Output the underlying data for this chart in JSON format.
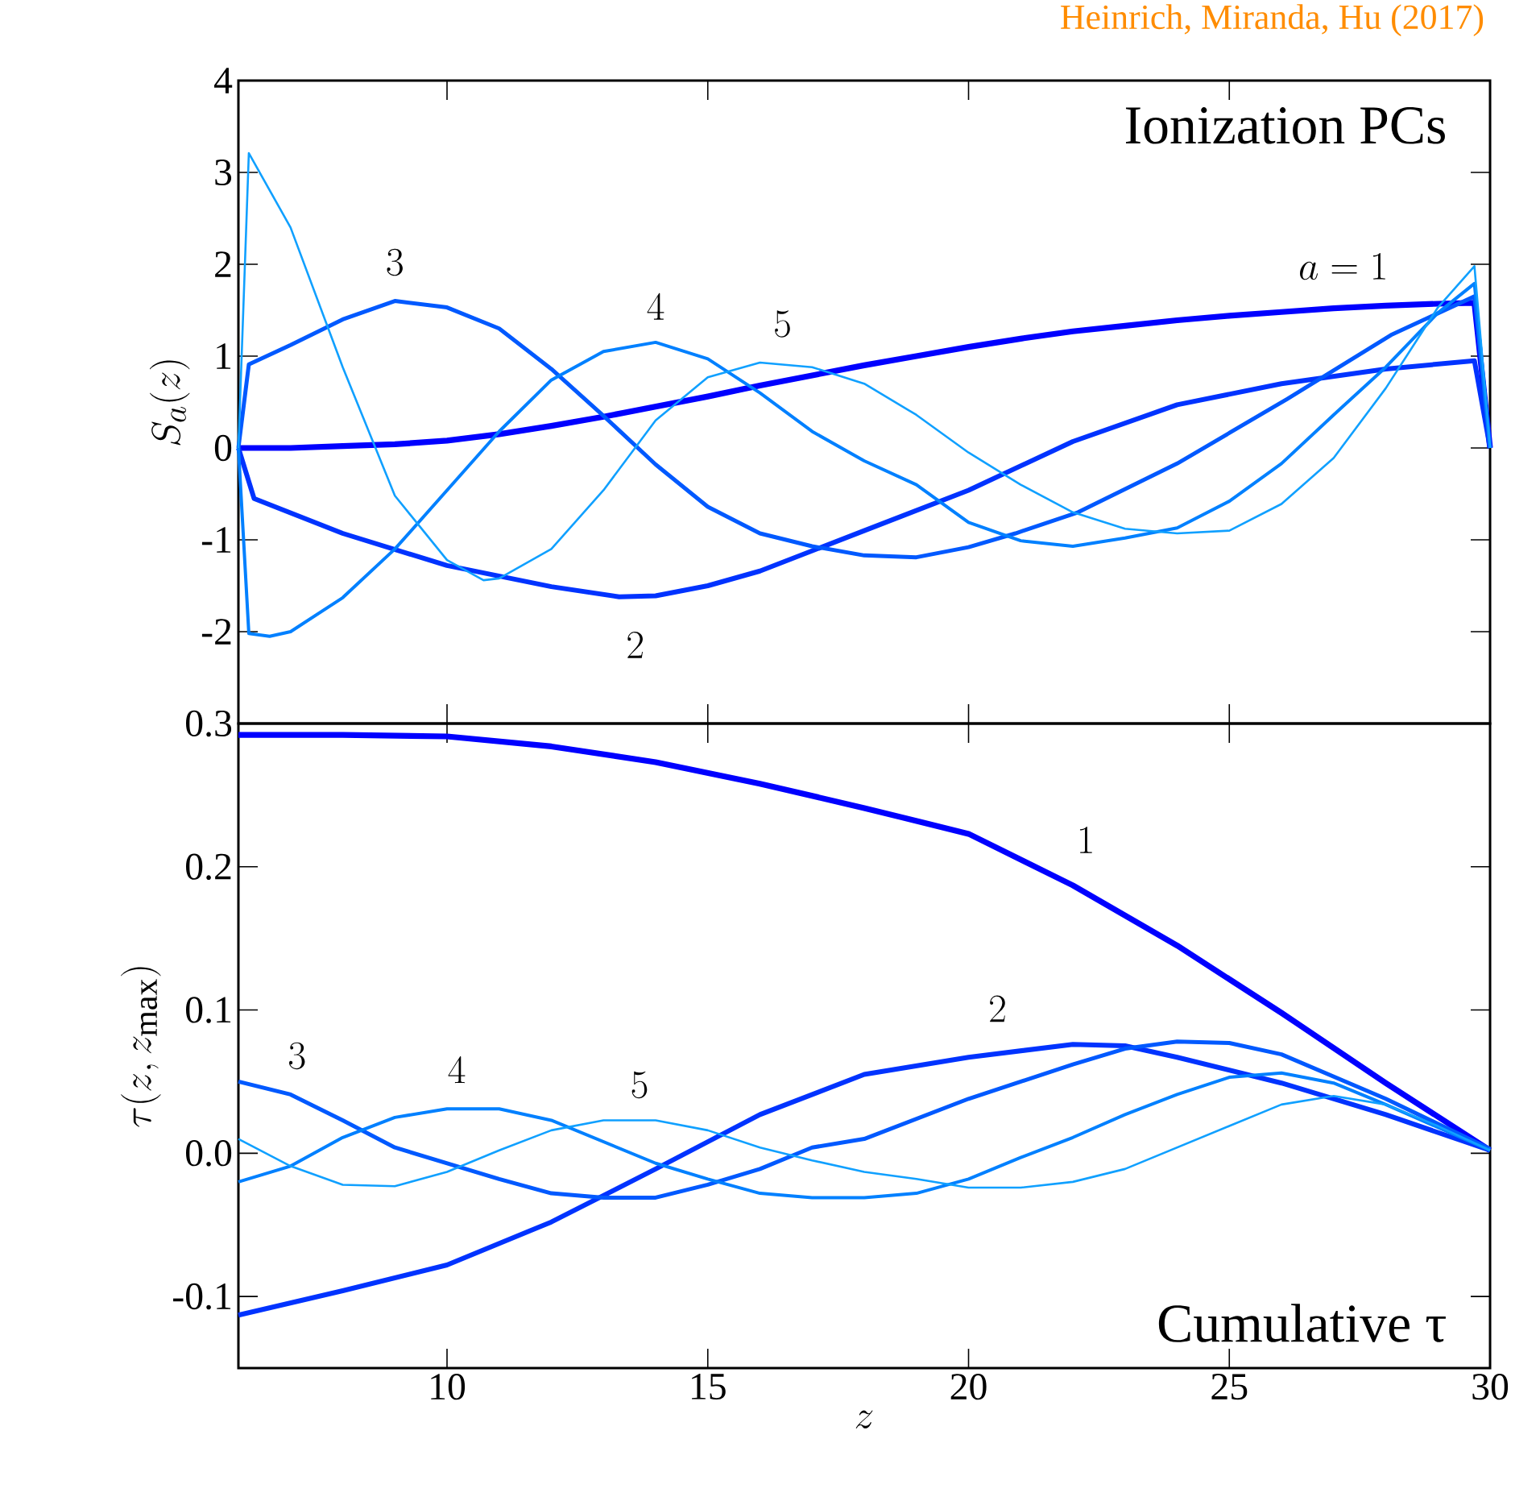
{
  "chart_data": [
    {
      "type": "line",
      "title": "Ionization PCs",
      "ylabel": "S_a(z)",
      "xlim": [
        6,
        30
      ],
      "xticks": [
        10,
        15,
        20,
        25,
        30
      ],
      "ylim": [
        -3,
        4
      ],
      "yticks": [
        -2,
        -1,
        0,
        1,
        2,
        3,
        4
      ],
      "tick_labels": "y",
      "annotations": [
        "Heinrich, Miranda, Hu (2017)"
      ],
      "series": [
        {
          "name": "a = 1",
          "color": "#0000ff",
          "x": [
            6,
            7,
            8,
            9,
            10,
            11,
            12,
            13,
            14,
            15,
            16,
            17,
            18,
            19,
            20,
            21,
            22,
            23,
            24,
            25,
            26,
            27,
            28,
            29,
            29.7,
            30
          ],
          "values": [
            0,
            0,
            0.02,
            0.04,
            0.08,
            0.15,
            0.24,
            0.34,
            0.45,
            0.56,
            0.68,
            0.79,
            0.9,
            1.0,
            1.1,
            1.19,
            1.27,
            1.33,
            1.39,
            1.44,
            1.48,
            1.52,
            1.55,
            1.57,
            1.58,
            0
          ]
        },
        {
          "name": "2",
          "color": "#0033ff",
          "x": [
            6,
            6.3,
            8,
            10,
            12,
            13.3,
            14,
            15,
            16,
            18,
            20,
            22,
            24,
            26,
            28,
            29.7,
            30
          ],
          "values": [
            0,
            -0.55,
            -0.93,
            -1.28,
            -1.51,
            -1.62,
            -1.61,
            -1.5,
            -1.34,
            -0.9,
            -0.46,
            0.07,
            0.47,
            0.7,
            0.86,
            0.95,
            0
          ]
        },
        {
          "name": "3",
          "color": "#0059ff",
          "x": [
            6,
            6.2,
            7,
            8,
            9,
            10,
            11,
            12,
            13,
            14,
            15,
            16,
            17,
            18,
            19,
            20,
            20.9,
            22.1,
            24,
            26.1,
            28.1,
            29.7,
            30
          ],
          "values": [
            0,
            0.91,
            1.12,
            1.4,
            1.6,
            1.53,
            1.3,
            0.86,
            0.35,
            -0.18,
            -0.64,
            -0.93,
            -1.07,
            -1.17,
            -1.19,
            -1.08,
            -0.93,
            -0.7,
            -0.17,
            0.53,
            1.23,
            1.65,
            0
          ]
        },
        {
          "name": "4",
          "color": "#0080ff",
          "x": [
            6,
            6.2,
            6.6,
            7,
            8,
            9,
            10,
            11,
            12,
            13,
            14,
            15,
            16,
            17,
            18,
            19,
            20,
            21,
            22,
            23,
            24,
            25,
            26,
            27,
            28,
            29,
            29.7,
            30
          ],
          "values": [
            0,
            -2.02,
            -2.05,
            -2.0,
            -1.63,
            -1.1,
            -0.46,
            0.18,
            0.74,
            1.05,
            1.15,
            0.97,
            0.6,
            0.18,
            -0.14,
            -0.4,
            -0.81,
            -1.01,
            -1.07,
            -0.98,
            -0.87,
            -0.58,
            -0.17,
            0.36,
            0.88,
            1.47,
            1.79,
            0
          ]
        },
        {
          "name": "5",
          "color": "#10a0ff",
          "x": [
            6,
            6.2,
            7,
            8,
            9,
            10,
            10.7,
            11,
            12,
            13,
            14,
            15,
            16,
            17,
            18,
            19,
            20,
            21,
            22,
            23,
            24,
            25,
            26,
            27,
            28,
            29,
            29.7,
            30
          ],
          "values": [
            0,
            3.21,
            2.4,
            0.88,
            -0.52,
            -1.22,
            -1.44,
            -1.42,
            -1.1,
            -0.46,
            0.3,
            0.77,
            0.93,
            0.88,
            0.7,
            0.36,
            -0.05,
            -0.4,
            -0.7,
            -0.88,
            -0.93,
            -0.9,
            -0.61,
            -0.11,
            0.65,
            1.53,
            1.98,
            0
          ]
        }
      ]
    },
    {
      "type": "line",
      "title": "Cumulative τ",
      "xlabel": "z",
      "ylabel": "\\tau(z,z_{\\mathrm{max}})",
      "xlim": [
        6,
        30
      ],
      "xticks": [
        10,
        15,
        20,
        25,
        30
      ],
      "ylim": [
        -0.15,
        0.3
      ],
      "yticks": [
        -0.1,
        {
          "value": 0,
          "label": "0.0"
        },
        0.1,
        0.2,
        0.3
      ],
      "series": [
        {
          "name": "1",
          "color": "#0000ff",
          "x": [
            6,
            8,
            10,
            12,
            14,
            16,
            18,
            20,
            22,
            24,
            26,
            28,
            30
          ],
          "values": [
            0.292,
            0.292,
            0.291,
            0.284,
            0.273,
            0.258,
            0.241,
            0.223,
            0.187,
            0.145,
            0.098,
            0.049,
            0.002
          ]
        },
        {
          "name": "2",
          "color": "#0033ff",
          "x": [
            6,
            8,
            10,
            12,
            14,
            16,
            18,
            20,
            22,
            23,
            24,
            26,
            28,
            30
          ],
          "values": [
            -0.113,
            -0.096,
            -0.078,
            -0.048,
            -0.011,
            0.027,
            0.055,
            0.067,
            0.076,
            0.075,
            0.067,
            0.049,
            0.027,
            0.002
          ]
        },
        {
          "name": "3",
          "color": "#0059ff",
          "x": [
            6,
            7,
            8,
            9,
            10,
            11,
            12,
            13,
            14,
            15,
            16,
            17,
            18,
            20,
            22,
            23,
            24,
            25,
            26,
            28,
            30
          ],
          "values": [
            0.05,
            0.041,
            0.023,
            0.004,
            -0.007,
            -0.018,
            -0.028,
            -0.031,
            -0.031,
            -0.022,
            -0.011,
            0.004,
            0.01,
            0.038,
            0.062,
            0.073,
            0.078,
            0.077,
            0.069,
            0.038,
            0.003
          ]
        },
        {
          "name": "4",
          "color": "#0080ff",
          "x": [
            6,
            7,
            8,
            9,
            10,
            11,
            12,
            13,
            14,
            15,
            16,
            17,
            18,
            19,
            20,
            21,
            22,
            23,
            24,
            25,
            26,
            27,
            28,
            30
          ],
          "values": [
            -0.02,
            -0.009,
            0.011,
            0.025,
            0.031,
            0.031,
            0.023,
            0.008,
            -0.007,
            -0.018,
            -0.028,
            -0.031,
            -0.031,
            -0.028,
            -0.018,
            -0.003,
            0.011,
            0.027,
            0.041,
            0.053,
            0.056,
            0.049,
            0.034,
            0.002
          ]
        },
        {
          "name": "5",
          "color": "#10a0ff",
          "x": [
            6,
            7,
            8,
            9,
            10,
            11,
            12,
            13,
            14,
            15,
            16,
            17,
            18,
            19,
            20,
            21,
            22,
            23,
            24,
            25,
            26,
            27,
            28,
            29,
            30
          ],
          "values": [
            0.01,
            -0.009,
            -0.022,
            -0.023,
            -0.013,
            0.002,
            0.016,
            0.023,
            0.023,
            0.016,
            0.004,
            -0.005,
            -0.013,
            -0.018,
            -0.024,
            -0.024,
            -0.02,
            -0.011,
            0.004,
            0.019,
            0.034,
            0.04,
            0.034,
            0.019,
            0.002
          ]
        }
      ]
    }
  ]
}
